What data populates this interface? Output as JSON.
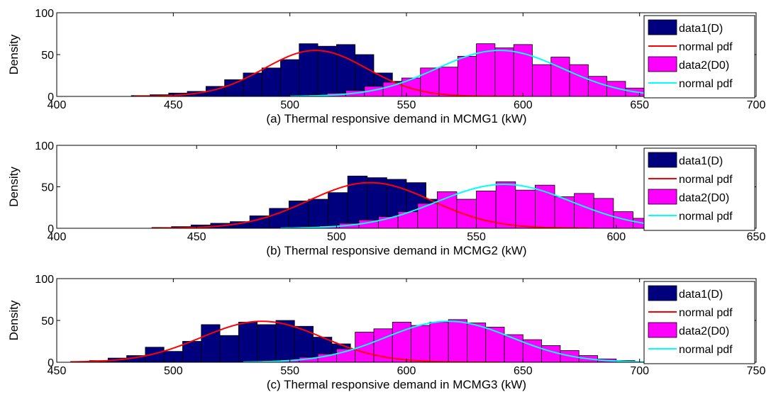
{
  "colors": {
    "data1": "#00007f",
    "data2": "#ff00ff",
    "pdf1": "#ff0000",
    "pdf2": "#00ffff",
    "axis": "#000000",
    "background": "#ffffff"
  },
  "chart_data": [
    {
      "type": "bar",
      "subtype": "histogram-with-normal-fit",
      "xlabel": "(a) Thermal responsive demand in MCMG1 (kW)",
      "ylabel": "Density",
      "xlim": [
        400,
        700
      ],
      "ylim": [
        0,
        100
      ],
      "xticks": [
        "400",
        "450",
        "500",
        "550",
        "600",
        "650",
        "700"
      ],
      "yticks": [
        "0",
        "50",
        "100"
      ],
      "grid": false,
      "legend": {
        "placement": "top-right",
        "entries": [
          {
            "label": "data1(D)",
            "kind": "patch",
            "color": "#00007f"
          },
          {
            "label": "normal pdf",
            "kind": "line",
            "color": "#ff0000"
          },
          {
            "label": "data2(D0)",
            "kind": "patch",
            "color": "#ff00ff"
          },
          {
            "label": "normal pdf",
            "kind": "line",
            "color": "#00ffff"
          }
        ]
      },
      "series": [
        {
          "kind": "histogram",
          "color": "#00007f",
          "bins": [
            {
              "x0": 432,
              "x1": 440,
              "y": 1
            },
            {
              "x0": 440,
              "x1": 448,
              "y": 2
            },
            {
              "x0": 448,
              "x1": 456,
              "y": 4
            },
            {
              "x0": 456,
              "x1": 464,
              "y": 6
            },
            {
              "x0": 464,
              "x1": 472,
              "y": 12
            },
            {
              "x0": 472,
              "x1": 480,
              "y": 20
            },
            {
              "x0": 480,
              "x1": 488,
              "y": 28
            },
            {
              "x0": 488,
              "x1": 496,
              "y": 34
            },
            {
              "x0": 496,
              "x1": 504,
              "y": 44
            },
            {
              "x0": 504,
              "x1": 512,
              "y": 63
            },
            {
              "x0": 512,
              "x1": 520,
              "y": 60
            },
            {
              "x0": 520,
              "x1": 528,
              "y": 62
            },
            {
              "x0": 528,
              "x1": 536,
              "y": 50
            },
            {
              "x0": 536,
              "x1": 544,
              "y": 28
            },
            {
              "x0": 544,
              "x1": 552,
              "y": 18
            },
            {
              "x0": 552,
              "x1": 560,
              "y": 12
            },
            {
              "x0": 560,
              "x1": 568,
              "y": 8
            },
            {
              "x0": 568,
              "x1": 576,
              "y": 5
            },
            {
              "x0": 576,
              "x1": 584,
              "y": 2
            },
            {
              "x0": 584,
              "x1": 592,
              "y": 1
            }
          ]
        },
        {
          "kind": "pdf",
          "color": "#ff0000",
          "mean": 511,
          "sd": 22,
          "peak": 55,
          "range": [
            433,
            600
          ]
        },
        {
          "kind": "histogram",
          "color": "#ff00ff",
          "bins": [
            {
              "x0": 500,
              "x1": 508,
              "y": 1
            },
            {
              "x0": 508,
              "x1": 516,
              "y": 2
            },
            {
              "x0": 516,
              "x1": 524,
              "y": 4
            },
            {
              "x0": 524,
              "x1": 532,
              "y": 7
            },
            {
              "x0": 532,
              "x1": 540,
              "y": 12
            },
            {
              "x0": 540,
              "x1": 548,
              "y": 17
            },
            {
              "x0": 548,
              "x1": 556,
              "y": 22
            },
            {
              "x0": 556,
              "x1": 564,
              "y": 34
            },
            {
              "x0": 564,
              "x1": 572,
              "y": 35
            },
            {
              "x0": 572,
              "x1": 580,
              "y": 48
            },
            {
              "x0": 580,
              "x1": 588,
              "y": 63
            },
            {
              "x0": 588,
              "x1": 596,
              "y": 58
            },
            {
              "x0": 596,
              "x1": 604,
              "y": 62
            },
            {
              "x0": 604,
              "x1": 612,
              "y": 38
            },
            {
              "x0": 612,
              "x1": 620,
              "y": 47
            },
            {
              "x0": 620,
              "x1": 628,
              "y": 38
            },
            {
              "x0": 628,
              "x1": 636,
              "y": 24
            },
            {
              "x0": 636,
              "x1": 644,
              "y": 18
            },
            {
              "x0": 644,
              "x1": 652,
              "y": 10
            },
            {
              "x0": 652,
              "x1": 660,
              "y": 5
            }
          ]
        },
        {
          "kind": "pdf",
          "color": "#00ffff",
          "mean": 590,
          "sd": 27,
          "peak": 55,
          "range": [
            500,
            665
          ]
        }
      ]
    },
    {
      "type": "bar",
      "subtype": "histogram-with-normal-fit",
      "xlabel": "(b) Thermal responsive demand in MCMG2 (kW)",
      "ylabel": "Density",
      "xlim": [
        400,
        650
      ],
      "ylim": [
        0,
        100
      ],
      "xticks": [
        "400",
        "450",
        "500",
        "550",
        "600",
        "650"
      ],
      "yticks": [
        "0",
        "50",
        "100"
      ],
      "grid": false,
      "legend": {
        "placement": "top-right",
        "entries": [
          {
            "label": "data1(D)",
            "kind": "patch",
            "color": "#00007f"
          },
          {
            "label": "normal pdf",
            "kind": "line",
            "color": "#ff0000"
          },
          {
            "label": "data2(D0)",
            "kind": "patch",
            "color": "#ff00ff"
          },
          {
            "label": "normal pdf",
            "kind": "line",
            "color": "#00ffff"
          }
        ]
      },
      "series": [
        {
          "kind": "histogram",
          "color": "#00007f",
          "bins": [
            {
              "x0": 434,
              "x1": 441,
              "y": 1
            },
            {
              "x0": 441,
              "x1": 448,
              "y": 2
            },
            {
              "x0": 448,
              "x1": 455,
              "y": 4
            },
            {
              "x0": 455,
              "x1": 462,
              "y": 6
            },
            {
              "x0": 462,
              "x1": 469,
              "y": 8
            },
            {
              "x0": 469,
              "x1": 476,
              "y": 15
            },
            {
              "x0": 476,
              "x1": 483,
              "y": 24
            },
            {
              "x0": 483,
              "x1": 490,
              "y": 33
            },
            {
              "x0": 490,
              "x1": 497,
              "y": 35
            },
            {
              "x0": 497,
              "x1": 504,
              "y": 43
            },
            {
              "x0": 504,
              "x1": 511,
              "y": 63
            },
            {
              "x0": 511,
              "x1": 518,
              "y": 61
            },
            {
              "x0": 518,
              "x1": 525,
              "y": 59
            },
            {
              "x0": 525,
              "x1": 532,
              "y": 55
            },
            {
              "x0": 532,
              "x1": 539,
              "y": 35
            },
            {
              "x0": 539,
              "x1": 546,
              "y": 22
            },
            {
              "x0": 546,
              "x1": 553,
              "y": 12
            },
            {
              "x0": 553,
              "x1": 560,
              "y": 7
            },
            {
              "x0": 560,
              "x1": 567,
              "y": 4
            },
            {
              "x0": 567,
              "x1": 574,
              "y": 2
            },
            {
              "x0": 574,
              "x1": 581,
              "y": 1
            }
          ]
        },
        {
          "kind": "pdf",
          "color": "#ff0000",
          "mean": 512,
          "sd": 22,
          "peak": 55,
          "range": [
            434,
            590
          ]
        },
        {
          "kind": "histogram",
          "color": "#ff00ff",
          "bins": [
            {
              "x0": 480,
              "x1": 487,
              "y": 1
            },
            {
              "x0": 487,
              "x1": 494,
              "y": 2
            },
            {
              "x0": 494,
              "x1": 501,
              "y": 3
            },
            {
              "x0": 501,
              "x1": 508,
              "y": 6
            },
            {
              "x0": 508,
              "x1": 515,
              "y": 10
            },
            {
              "x0": 515,
              "x1": 522,
              "y": 14
            },
            {
              "x0": 522,
              "x1": 529,
              "y": 20
            },
            {
              "x0": 529,
              "x1": 536,
              "y": 30
            },
            {
              "x0": 536,
              "x1": 543,
              "y": 44
            },
            {
              "x0": 543,
              "x1": 550,
              "y": 35
            },
            {
              "x0": 550,
              "x1": 557,
              "y": 45
            },
            {
              "x0": 557,
              "x1": 564,
              "y": 56
            },
            {
              "x0": 564,
              "x1": 571,
              "y": 46
            },
            {
              "x0": 571,
              "x1": 578,
              "y": 52
            },
            {
              "x0": 578,
              "x1": 585,
              "y": 38
            },
            {
              "x0": 585,
              "x1": 592,
              "y": 42
            },
            {
              "x0": 592,
              "x1": 599,
              "y": 36
            },
            {
              "x0": 599,
              "x1": 606,
              "y": 20
            },
            {
              "x0": 606,
              "x1": 613,
              "y": 12
            },
            {
              "x0": 613,
              "x1": 620,
              "y": 6
            }
          ]
        },
        {
          "kind": "pdf",
          "color": "#00ffff",
          "mean": 560,
          "sd": 24,
          "peak": 53,
          "range": [
            480,
            612
          ]
        }
      ]
    },
    {
      "type": "bar",
      "subtype": "histogram-with-normal-fit",
      "xlabel": "(c) Thermal responsive demand in MCMG3 (kW)",
      "ylabel": "Density",
      "xlim": [
        450,
        750
      ],
      "ylim": [
        0,
        100
      ],
      "xticks": [
        "450",
        "500",
        "550",
        "600",
        "650",
        "700",
        "750"
      ],
      "yticks": [
        "0",
        "50",
        "100"
      ],
      "grid": false,
      "legend": {
        "placement": "top-right",
        "entries": [
          {
            "label": "data1(D)",
            "kind": "patch",
            "color": "#00007f"
          },
          {
            "label": "normal pdf",
            "kind": "line",
            "color": "#ff0000"
          },
          {
            "label": "data2(D0)",
            "kind": "patch",
            "color": "#ff00ff"
          },
          {
            "label": "normal pdf",
            "kind": "line",
            "color": "#00ffff"
          }
        ]
      },
      "series": [
        {
          "kind": "histogram",
          "color": "#00007f",
          "bins": [
            {
              "x0": 456,
              "x1": 464,
              "y": 1
            },
            {
              "x0": 464,
              "x1": 472,
              "y": 2
            },
            {
              "x0": 472,
              "x1": 480,
              "y": 5
            },
            {
              "x0": 480,
              "x1": 488,
              "y": 8
            },
            {
              "x0": 488,
              "x1": 496,
              "y": 18
            },
            {
              "x0": 496,
              "x1": 504,
              "y": 13
            },
            {
              "x0": 504,
              "x1": 512,
              "y": 25
            },
            {
              "x0": 512,
              "x1": 520,
              "y": 45
            },
            {
              "x0": 520,
              "x1": 528,
              "y": 32
            },
            {
              "x0": 528,
              "x1": 536,
              "y": 48
            },
            {
              "x0": 536,
              "x1": 544,
              "y": 45
            },
            {
              "x0": 544,
              "x1": 552,
              "y": 50
            },
            {
              "x0": 552,
              "x1": 560,
              "y": 43
            },
            {
              "x0": 560,
              "x1": 568,
              "y": 30
            },
            {
              "x0": 568,
              "x1": 576,
              "y": 22
            },
            {
              "x0": 576,
              "x1": 584,
              "y": 12
            },
            {
              "x0": 584,
              "x1": 592,
              "y": 8
            },
            {
              "x0": 592,
              "x1": 600,
              "y": 4
            },
            {
              "x0": 600,
              "x1": 608,
              "y": 2
            }
          ]
        },
        {
          "kind": "pdf",
          "color": "#ff0000",
          "mean": 538,
          "sd": 26,
          "peak": 49,
          "range": [
            456,
            640
          ]
        },
        {
          "kind": "histogram",
          "color": "#ff00ff",
          "bins": [
            {
              "x0": 530,
              "x1": 538,
              "y": 1
            },
            {
              "x0": 538,
              "x1": 546,
              "y": 2
            },
            {
              "x0": 546,
              "x1": 554,
              "y": 3
            },
            {
              "x0": 554,
              "x1": 562,
              "y": 6
            },
            {
              "x0": 562,
              "x1": 570,
              "y": 10
            },
            {
              "x0": 570,
              "x1": 578,
              "y": 16
            },
            {
              "x0": 578,
              "x1": 586,
              "y": 36
            },
            {
              "x0": 586,
              "x1": 594,
              "y": 40
            },
            {
              "x0": 594,
              "x1": 602,
              "y": 48
            },
            {
              "x0": 602,
              "x1": 610,
              "y": 44
            },
            {
              "x0": 610,
              "x1": 618,
              "y": 48
            },
            {
              "x0": 618,
              "x1": 626,
              "y": 51
            },
            {
              "x0": 626,
              "x1": 634,
              "y": 47
            },
            {
              "x0": 634,
              "x1": 642,
              "y": 42
            },
            {
              "x0": 642,
              "x1": 650,
              "y": 33
            },
            {
              "x0": 650,
              "x1": 658,
              "y": 27
            },
            {
              "x0": 658,
              "x1": 666,
              "y": 20
            },
            {
              "x0": 666,
              "x1": 674,
              "y": 14
            },
            {
              "x0": 674,
              "x1": 682,
              "y": 8
            },
            {
              "x0": 682,
              "x1": 690,
              "y": 4
            },
            {
              "x0": 690,
              "x1": 698,
              "y": 2
            }
          ]
        },
        {
          "kind": "pdf",
          "color": "#00ffff",
          "mean": 618,
          "sd": 27,
          "peak": 49,
          "range": [
            530,
            705
          ]
        }
      ]
    }
  ]
}
